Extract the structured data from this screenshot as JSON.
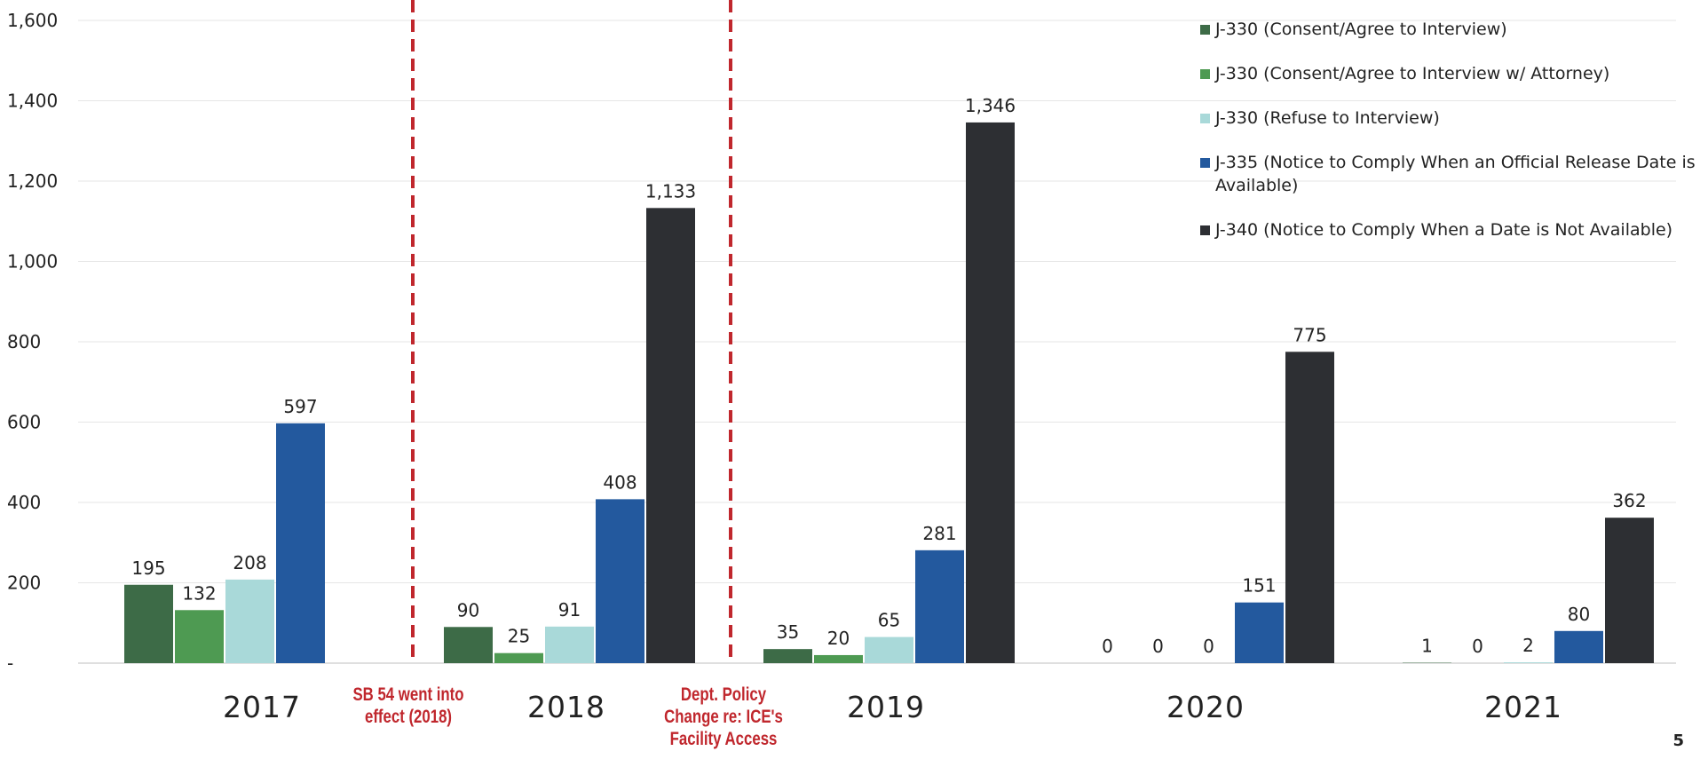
{
  "chart_data": {
    "type": "bar",
    "categories": [
      "2017",
      "2018",
      "2019",
      "2020",
      "2021"
    ],
    "series": [
      {
        "name": "J-330 (Consent/Agree to Interview)",
        "color": "#3d6b47",
        "values": [
          195,
          90,
          35,
          0,
          1
        ]
      },
      {
        "name": "J-330 (Consent/Agree to Interview w/ Attorney)",
        "color": "#4e9a52",
        "values": [
          132,
          25,
          20,
          0,
          0
        ]
      },
      {
        "name": "J-330 (Refuse to Interview)",
        "color": "#a9d9d9",
        "values": [
          208,
          91,
          65,
          0,
          2
        ]
      },
      {
        "name": "J-335 (Notice to Comply When an Official Release Date is Available)",
        "color": "#23599e",
        "values": [
          597,
          408,
          281,
          151,
          80
        ]
      },
      {
        "name": "J-340 (Notice to Comply When a Date is Not Available)",
        "color": "#2d2f33",
        "values": [
          null,
          1133,
          1346,
          775,
          362
        ]
      }
    ],
    "data_labels": [
      [
        "195",
        "132",
        "208",
        "597",
        ""
      ],
      [
        "90",
        "25",
        "91",
        "408",
        "1,133"
      ],
      [
        "35",
        "20",
        "65",
        "281",
        "1,346"
      ],
      [
        "0",
        "0",
        "0",
        "151",
        "775"
      ],
      [
        "1",
        "0",
        "2",
        "80",
        "362"
      ]
    ],
    "ylim": [
      0,
      1600
    ],
    "yticks": [
      0,
      200,
      400,
      600,
      800,
      1000,
      1200,
      1400,
      1600
    ],
    "ytick_labels": [
      "-",
      "200",
      "400",
      "600",
      "800",
      "1,000",
      "1,200",
      "1,400",
      "1,600"
    ],
    "grid": true,
    "legend_position": "top-right",
    "annotations": [
      {
        "text": "SB 54 went into effect (2018)",
        "lines": [
          "SB 54 went into",
          "effect (2018)"
        ],
        "color": "#c0272d"
      },
      {
        "text": "Dept. Policy Change re: ICE's Facility Access",
        "lines": [
          "Dept. Policy",
          "Change re: ICE's",
          "Facility Access"
        ],
        "color": "#c0272d"
      }
    ]
  },
  "page_number": "5"
}
